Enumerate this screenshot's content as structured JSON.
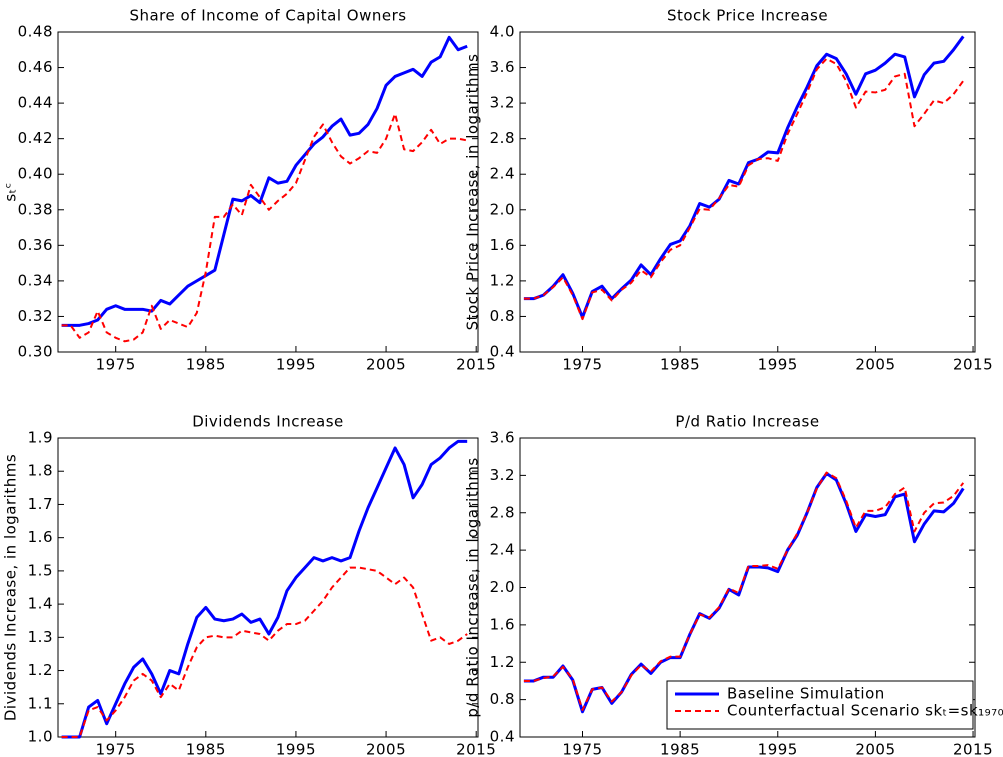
{
  "chart_data": [
    {
      "type": "line",
      "title": "Share of Income of Capital Owners",
      "ylabel": "sₜᶜ",
      "x": [
        1969,
        1970,
        1971,
        1972,
        1973,
        1974,
        1975,
        1976,
        1977,
        1978,
        1979,
        1980,
        1981,
        1982,
        1983,
        1984,
        1985,
        1986,
        1987,
        1988,
        1989,
        1990,
        1991,
        1992,
        1993,
        1994,
        1995,
        1996,
        1997,
        1998,
        1999,
        2000,
        2001,
        2002,
        2003,
        2004,
        2005,
        2006,
        2007,
        2008,
        2009,
        2010,
        2011,
        2012,
        2013,
        2014
      ],
      "xlim": [
        1968.6,
        2015.2
      ],
      "xticks": [
        1975,
        1985,
        1995,
        2005,
        2015
      ],
      "ylim": [
        0.3,
        0.48
      ],
      "yticks": [
        {
          "value": 0.3,
          "label": "0.30"
        },
        0.32,
        0.34,
        0.36,
        0.38,
        {
          "value": 0.4,
          "label": "0.40"
        },
        0.42,
        0.44,
        0.46,
        0.48
      ],
      "series": [
        {
          "color": "#0000ff",
          "values": [
            0.315,
            0.315,
            0.315,
            0.316,
            0.318,
            0.324,
            0.326,
            0.324,
            0.324,
            0.324,
            0.323,
            0.329,
            0.327,
            0.332,
            0.337,
            0.34,
            0.343,
            0.346,
            0.366,
            0.386,
            0.385,
            0.388,
            0.384,
            0.398,
            0.395,
            0.396,
            0.405,
            0.411,
            0.417,
            0.421,
            0.427,
            0.431,
            0.422,
            0.423,
            0.428,
            0.437,
            0.45,
            0.455,
            0.457,
            0.459,
            0.455,
            0.463,
            0.466,
            0.477,
            0.47,
            0.472
          ]
        },
        {
          "color": "#ff0000",
          "values": [
            0.315,
            0.315,
            0.308,
            0.311,
            0.323,
            0.311,
            0.308,
            0.306,
            0.307,
            0.311,
            0.326,
            0.313,
            0.318,
            0.316,
            0.314,
            0.322,
            0.345,
            0.376,
            0.376,
            0.383,
            0.377,
            0.394,
            0.387,
            0.38,
            0.385,
            0.389,
            0.395,
            0.408,
            0.421,
            0.428,
            0.418,
            0.41,
            0.406,
            0.409,
            0.413,
            0.412,
            0.42,
            0.434,
            0.414,
            0.413,
            0.418,
            0.425,
            0.417,
            0.42,
            0.42,
            0.419
          ]
        }
      ]
    },
    {
      "type": "line",
      "title": "Stock Price Increase",
      "ylabel": "Stock Price Increase, in logarithms",
      "x": [
        1969,
        1970,
        1971,
        1972,
        1973,
        1974,
        1975,
        1976,
        1977,
        1978,
        1979,
        1980,
        1981,
        1982,
        1983,
        1984,
        1985,
        1986,
        1987,
        1988,
        1989,
        1990,
        1991,
        1992,
        1993,
        1994,
        1995,
        1996,
        1997,
        1998,
        1999,
        2000,
        2001,
        2002,
        2003,
        2004,
        2005,
        2006,
        2007,
        2008,
        2009,
        2010,
        2011,
        2012,
        2013,
        2014
      ],
      "xlim": [
        1968.6,
        2015.2
      ],
      "xticks": [
        1975,
        1985,
        1995,
        2005,
        2015
      ],
      "ylim": [
        0.4,
        4.0
      ],
      "yticks": [
        0.4,
        0.8,
        1.2,
        1.6,
        {
          "value": 2.0,
          "label": "2.0"
        },
        2.4,
        2.8,
        3.2,
        3.6,
        {
          "value": 4.0,
          "label": "4.0"
        }
      ],
      "series": [
        {
          "color": "#0000ff",
          "values": [
            1.0,
            1.0,
            1.04,
            1.14,
            1.27,
            1.06,
            0.79,
            1.08,
            1.14,
            1.0,
            1.11,
            1.21,
            1.38,
            1.27,
            1.45,
            1.61,
            1.65,
            1.82,
            2.07,
            2.03,
            2.12,
            2.33,
            2.29,
            2.53,
            2.57,
            2.65,
            2.64,
            2.92,
            3.16,
            3.38,
            3.62,
            3.75,
            3.7,
            3.53,
            3.3,
            3.53,
            3.57,
            3.65,
            3.75,
            3.72,
            3.27,
            3.52,
            3.65,
            3.67,
            3.8,
            3.95
          ]
        },
        {
          "color": "#ff0000",
          "values": [
            1.0,
            1.0,
            1.04,
            1.13,
            1.24,
            1.04,
            0.77,
            1.07,
            1.1,
            0.98,
            1.1,
            1.18,
            1.32,
            1.24,
            1.41,
            1.55,
            1.6,
            1.8,
            2.01,
            2.0,
            2.13,
            2.28,
            2.26,
            2.5,
            2.57,
            2.58,
            2.55,
            2.85,
            3.08,
            3.32,
            3.58,
            3.7,
            3.64,
            3.45,
            3.15,
            3.33,
            3.32,
            3.35,
            3.5,
            3.53,
            2.94,
            3.08,
            3.23,
            3.2,
            3.3,
            3.45
          ]
        }
      ]
    },
    {
      "type": "line",
      "title": "Dividends Increase",
      "ylabel": "Dividends Increase, in logarithms",
      "x": [
        1969,
        1970,
        1971,
        1972,
        1973,
        1974,
        1975,
        1976,
        1977,
        1978,
        1979,
        1980,
        1981,
        1982,
        1983,
        1984,
        1985,
        1986,
        1987,
        1988,
        1989,
        1990,
        1991,
        1992,
        1993,
        1994,
        1995,
        1996,
        1997,
        1998,
        1999,
        2000,
        2001,
        2002,
        2003,
        2004,
        2005,
        2006,
        2007,
        2008,
        2009,
        2010,
        2011,
        2012,
        2013,
        2014
      ],
      "xlim": [
        1968.6,
        2015.2
      ],
      "xticks": [
        1975,
        1985,
        1995,
        2005,
        2015
      ],
      "ylim": [
        1.0,
        1.9
      ],
      "yticks": [
        {
          "value": 1.0,
          "label": "1.0"
        },
        1.1,
        1.2,
        1.3,
        1.4,
        1.5,
        1.6,
        1.7,
        1.8,
        1.9
      ],
      "series": [
        {
          "color": "#0000ff",
          "values": [
            1.0,
            1.0,
            1.0,
            1.09,
            1.11,
            1.04,
            1.1,
            1.16,
            1.21,
            1.235,
            1.19,
            1.13,
            1.2,
            1.19,
            1.28,
            1.36,
            1.39,
            1.355,
            1.35,
            1.355,
            1.37,
            1.345,
            1.355,
            1.31,
            1.36,
            1.44,
            1.48,
            1.51,
            1.54,
            1.53,
            1.54,
            1.53,
            1.54,
            1.62,
            1.69,
            1.75,
            1.81,
            1.87,
            1.82,
            1.72,
            1.76,
            1.82,
            1.84,
            1.87,
            1.89,
            1.89
          ]
        },
        {
          "color": "#ff0000",
          "values": [
            1.0,
            1.0,
            1.0,
            1.08,
            1.09,
            1.05,
            1.08,
            1.12,
            1.17,
            1.19,
            1.17,
            1.12,
            1.16,
            1.14,
            1.21,
            1.27,
            1.3,
            1.305,
            1.3,
            1.3,
            1.32,
            1.315,
            1.31,
            1.29,
            1.32,
            1.34,
            1.34,
            1.35,
            1.38,
            1.41,
            1.45,
            1.48,
            1.51,
            1.51,
            1.505,
            1.5,
            1.48,
            1.46,
            1.48,
            1.45,
            1.37,
            1.29,
            1.3,
            1.28,
            1.29,
            1.31
          ]
        }
      ]
    },
    {
      "type": "line",
      "title": "P/d Ratio Increase",
      "ylabel": "p/d Ratio Increase, in logarithms",
      "legend": "lower right",
      "x": [
        1969,
        1970,
        1971,
        1972,
        1973,
        1974,
        1975,
        1976,
        1977,
        1978,
        1979,
        1980,
        1981,
        1982,
        1983,
        1984,
        1985,
        1986,
        1987,
        1988,
        1989,
        1990,
        1991,
        1992,
        1993,
        1994,
        1995,
        1996,
        1997,
        1998,
        1999,
        2000,
        2001,
        2002,
        2003,
        2004,
        2005,
        2006,
        2007,
        2008,
        2009,
        2010,
        2011,
        2012,
        2013,
        2014
      ],
      "xlim": [
        1968.6,
        2015.2
      ],
      "xticks": [
        1975,
        1985,
        1995,
        2005,
        2015
      ],
      "ylim": [
        0.4,
        3.6
      ],
      "yticks": [
        0.4,
        0.8,
        1.2,
        1.6,
        {
          "value": 2.0,
          "label": "2.0"
        },
        2.4,
        2.8,
        3.2,
        3.6
      ],
      "series": [
        {
          "name": "Baseline Simulation",
          "color": "#0000ff",
          "values": [
            1.0,
            1.0,
            1.04,
            1.04,
            1.16,
            1.01,
            0.67,
            0.91,
            0.93,
            0.76,
            0.88,
            1.07,
            1.18,
            1.08,
            1.2,
            1.25,
            1.25,
            1.5,
            1.72,
            1.67,
            1.78,
            1.98,
            1.92,
            2.22,
            2.22,
            2.21,
            2.17,
            2.4,
            2.56,
            2.8,
            3.07,
            3.22,
            3.15,
            2.9,
            2.6,
            2.78,
            2.76,
            2.78,
            2.97,
            3.0,
            2.49,
            2.68,
            2.82,
            2.81,
            2.9,
            3.06
          ]
        },
        {
          "name": "Counterfactual Scenario skₜ=sk₁₉₇₀",
          "color": "#ff0000",
          "values": [
            1.0,
            1.0,
            1.03,
            1.05,
            1.15,
            1.02,
            0.69,
            0.91,
            0.93,
            0.78,
            0.88,
            1.06,
            1.17,
            1.1,
            1.21,
            1.26,
            1.26,
            1.5,
            1.71,
            1.68,
            1.79,
            1.99,
            1.94,
            2.23,
            2.23,
            2.24,
            2.2,
            2.4,
            2.58,
            2.8,
            3.06,
            3.23,
            3.17,
            2.93,
            2.64,
            2.82,
            2.82,
            2.86,
            3.0,
            3.07,
            2.6,
            2.8,
            2.9,
            2.91,
            2.98,
            3.12
          ]
        }
      ]
    }
  ]
}
